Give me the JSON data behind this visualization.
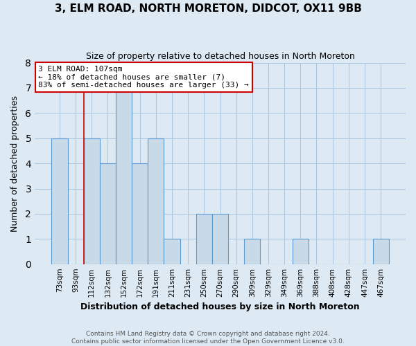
{
  "title": "3, ELM ROAD, NORTH MORETON, DIDCOT, OX11 9BB",
  "subtitle": "Size of property relative to detached houses in North Moreton",
  "xlabel": "Distribution of detached houses by size in North Moreton",
  "ylabel": "Number of detached properties",
  "footer_line1": "Contains HM Land Registry data © Crown copyright and database right 2024.",
  "footer_line2": "Contains public sector information licensed under the Open Government Licence v3.0.",
  "bin_labels": [
    "73sqm",
    "93sqm",
    "112sqm",
    "132sqm",
    "152sqm",
    "172sqm",
    "191sqm",
    "211sqm",
    "231sqm",
    "250sqm",
    "270sqm",
    "290sqm",
    "309sqm",
    "329sqm",
    "349sqm",
    "369sqm",
    "388sqm",
    "408sqm",
    "428sqm",
    "447sqm",
    "467sqm"
  ],
  "bar_heights": [
    5,
    0,
    5,
    4,
    7,
    4,
    5,
    1,
    0,
    2,
    2,
    0,
    1,
    0,
    0,
    1,
    0,
    0,
    0,
    0,
    1
  ],
  "bar_color": "#c8d9e8",
  "bar_edge_color": "#5b9bd5",
  "ylim": [
    0,
    8
  ],
  "yticks": [
    0,
    1,
    2,
    3,
    4,
    5,
    6,
    7,
    8
  ],
  "property_line_x": 2,
  "property_line_color": "#cc0000",
  "annotation_line1": "3 ELM ROAD: 107sqm",
  "annotation_line2": "← 18% of detached houses are smaller (7)",
  "annotation_line3": "83% of semi-detached houses are larger (33) →",
  "annotation_box_edge_color": "#cc0000",
  "annotation_box_facecolor": "white",
  "grid_color": "#aac4de",
  "background_color": "#ddeaf4"
}
